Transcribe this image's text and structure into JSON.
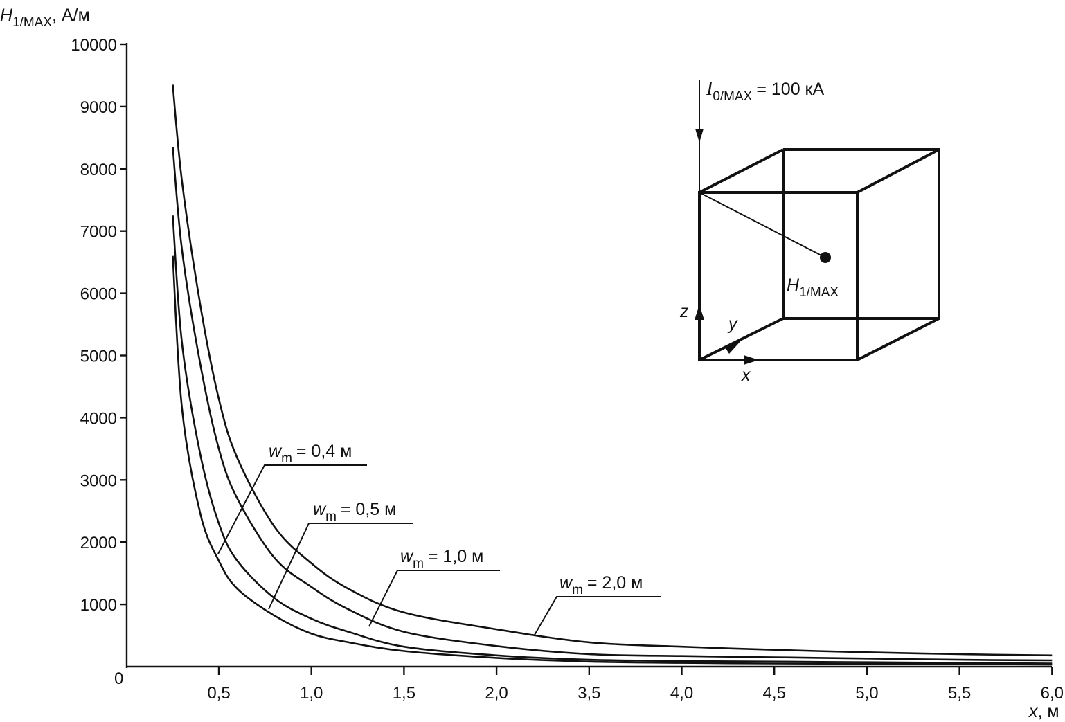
{
  "chart_data": {
    "type": "line",
    "ylabel": {
      "var": "H",
      "sub": "1/MAX",
      "unit": ", А/м"
    },
    "xlabel": {
      "var": "x",
      "unit": ", м"
    },
    "ylim": [
      0,
      10000
    ],
    "y_ticks": [
      "10000",
      "9000",
      "8000",
      "7000",
      "6000",
      "5000",
      "4000",
      "3000",
      "2000",
      "1000",
      "0"
    ],
    "y_tick_values": [
      10000,
      9000,
      8000,
      7000,
      6000,
      5000,
      4000,
      3000,
      2000,
      1000,
      0
    ],
    "x_ticks": [
      "0,5",
      "1,0",
      "1,5",
      "2,0",
      "3,5",
      "4,0",
      "4,5",
      "5,0",
      "5,5",
      "6,0"
    ],
    "x": [
      0.25,
      0.3,
      0.4,
      0.5,
      0.6,
      0.8,
      1.0,
      1.2,
      1.5,
      2.0,
      3.5,
      4.0,
      4.5,
      5.0,
      5.5,
      6.0
    ],
    "series": [
      {
        "name": "w_m = 0,4 м",
        "sub_label": "m",
        "var_label": "w",
        "value_label": "= 0,4 м",
        "values": [
          6600,
          4150,
          2450,
          1700,
          1250,
          820,
          530,
          390,
          250,
          140,
          80,
          60,
          50,
          45,
          40,
          35
        ]
      },
      {
        "name": "w_m = 0,5 м",
        "sub_label": "m",
        "var_label": "w",
        "value_label": "= 0,5 м",
        "values": [
          7250,
          5200,
          3400,
          2300,
          1700,
          1100,
          770,
          560,
          320,
          180,
          110,
          90,
          80,
          70,
          60,
          50
        ]
      },
      {
        "name": "w_m = 1,0 м",
        "sub_label": "m",
        "var_label": "w",
        "value_label": "= 1,0 м",
        "values": [
          8350,
          6700,
          4850,
          3500,
          2700,
          1750,
          1280,
          920,
          560,
          330,
          200,
          170,
          150,
          130,
          110,
          100
        ]
      },
      {
        "name": "w_m = 2,0 м",
        "sub_label": "m",
        "var_label": "w",
        "value_label": "= 2,0 м",
        "values": [
          9350,
          7800,
          5800,
          4300,
          3350,
          2250,
          1660,
          1250,
          870,
          600,
          390,
          320,
          270,
          230,
          200,
          180
        ]
      }
    ]
  },
  "inset": {
    "current_var": "I",
    "current_sub": "0/MAX",
    "current_value": "= 100 кА",
    "point_var": "H",
    "point_sub": "1/MAX",
    "axis_z": "z",
    "axis_y": "y",
    "axis_x": "x"
  },
  "origin_label": "0"
}
